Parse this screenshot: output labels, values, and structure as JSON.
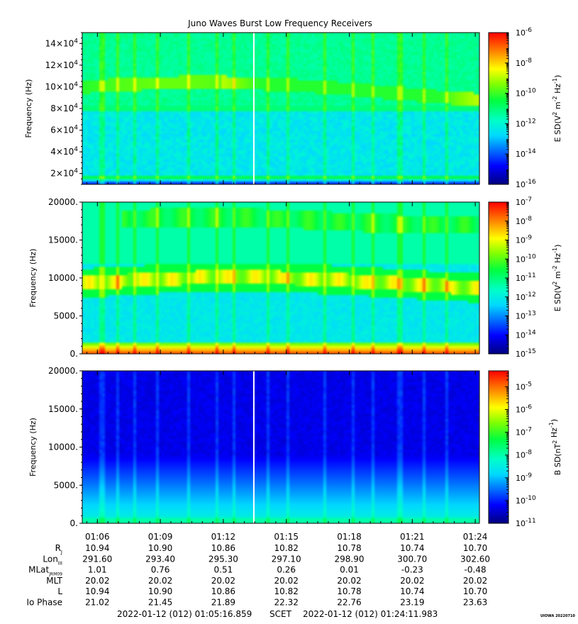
{
  "chart_data": [
    {
      "type": "heatmap",
      "title": "Juno Waves Burst Low Frequency Receivers",
      "ylabel": "Frequency (Hz)",
      "ylim": [
        10000,
        150000
      ],
      "yticks": [
        {
          "value": 20000,
          "mant": "2",
          "exp": "4"
        },
        {
          "value": 40000,
          "mant": "4",
          "exp": "4"
        },
        {
          "value": 60000,
          "mant": "6",
          "exp": "4"
        },
        {
          "value": 80000,
          "mant": "8",
          "exp": "4"
        },
        {
          "value": 100000,
          "mant": "10",
          "exp": "4"
        },
        {
          "value": 120000,
          "mant": "12",
          "exp": "4"
        },
        {
          "value": 140000,
          "mant": "14",
          "exp": "4"
        }
      ],
      "colorbar": {
        "label_pre": "E SD(V",
        "label_sup1": "2",
        "label_mid": " m",
        "label_sup2": "-2",
        "label_mid2": " Hz",
        "label_sup3": "-1",
        "label_post": ")",
        "log_min": -16,
        "log_max": -6,
        "ticks": [
          "-6",
          "-8",
          "-10",
          "-12",
          "-14",
          "-16"
        ]
      }
    },
    {
      "type": "heatmap",
      "ylabel": "Frequency (Hz)",
      "ylim": [
        0,
        20000
      ],
      "yticks": [
        {
          "value": 0,
          "label": "0."
        },
        {
          "value": 5000,
          "label": "5000."
        },
        {
          "value": 10000,
          "label": "10000."
        },
        {
          "value": 15000,
          "label": "15000."
        },
        {
          "value": 20000,
          "label": "20000."
        }
      ],
      "colorbar": {
        "label_pre": "E SD(V",
        "label_sup1": "2",
        "label_mid": " m",
        "label_sup2": "-2",
        "label_mid2": " Hz",
        "label_sup3": "-1",
        "label_post": ")",
        "log_min": -15,
        "log_max": -7,
        "ticks": [
          "-7",
          "-8",
          "-9",
          "-10",
          "-11",
          "-12",
          "-13",
          "-14",
          "-15"
        ]
      }
    },
    {
      "type": "heatmap",
      "ylabel": "Frequency (Hz)",
      "ylim": [
        0,
        20000
      ],
      "yticks": [
        {
          "value": 0,
          "label": "0."
        },
        {
          "value": 5000,
          "label": "5000."
        },
        {
          "value": 10000,
          "label": "10000."
        },
        {
          "value": 15000,
          "label": "15000."
        },
        {
          "value": 20000,
          "label": "20000."
        }
      ],
      "colorbar": {
        "label_pre": "B SD(nT",
        "label_sup1": "2",
        "label_mid": "",
        "label_sup2": "",
        "label_mid2": " Hz",
        "label_sup3": "-1",
        "label_post": ")",
        "log_min": -11,
        "log_max": -4.3,
        "ticks": [
          "-5",
          "-6",
          "-7",
          "-8",
          "-9",
          "-10",
          "-11"
        ]
      }
    }
  ],
  "time_axis": {
    "xlim_seconds": [
      3916.859,
      5051.983
    ],
    "ticks": [
      {
        "label": "01:06",
        "sec": 3960
      },
      {
        "label": "01:09",
        "sec": 4140
      },
      {
        "label": "01:12",
        "sec": 4320
      },
      {
        "label": "01:15",
        "sec": 4500
      },
      {
        "label": "01:18",
        "sec": 4680
      },
      {
        "label": "01:21",
        "sec": 4860
      },
      {
        "label": "01:24",
        "sec": 5040
      }
    ]
  },
  "ephemeris": {
    "rows": [
      {
        "label": "R",
        "sub": "J",
        "values": [
          "10.94",
          "10.90",
          "10.86",
          "10.82",
          "10.78",
          "10.74",
          "10.70"
        ]
      },
      {
        "label": "Lon",
        "sub": "III",
        "values": [
          "291.60",
          "293.40",
          "295.30",
          "297.10",
          "298.90",
          "300.70",
          "302.60"
        ]
      },
      {
        "label": "MLat",
        "sub": "JRM09",
        "values": [
          "1.01",
          "0.76",
          "0.51",
          "0.26",
          "0.01",
          "-0.23",
          "-0.48"
        ]
      },
      {
        "label": "MLT",
        "sub": "",
        "values": [
          "20.02",
          "20.02",
          "20.02",
          "20.02",
          "20.02",
          "20.02",
          "20.02"
        ]
      },
      {
        "label": "L",
        "sub": "",
        "values": [
          "10.94",
          "10.90",
          "10.86",
          "10.82",
          "10.78",
          "10.74",
          "10.70"
        ]
      },
      {
        "label": "Io Phase",
        "sub": "",
        "values": [
          "21.02",
          "21.45",
          "21.89",
          "22.32",
          "22.76",
          "23.19",
          "23.63"
        ]
      }
    ]
  },
  "footer": {
    "start": "2022-01-12 (012) 01:05:16.859",
    "scet": "SCET",
    "end": "2022-01-12 (012) 01:24:11.983"
  },
  "credit": "UIOWA 20220710"
}
